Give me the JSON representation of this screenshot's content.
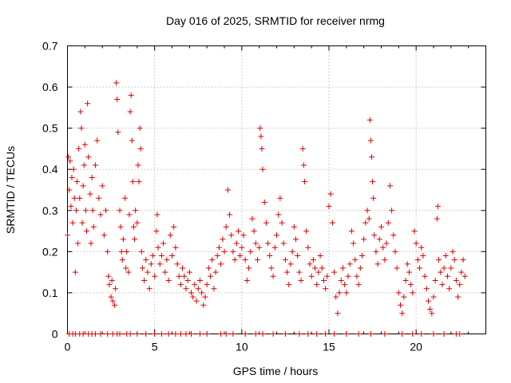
{
  "chart_data": {
    "type": "scatter",
    "title": "Day 016 of 2025, SRMTID for receiver nrmg",
    "xlabel": "GPS time / hours",
    "ylabel": "SRMTID / TECUs",
    "xlim": [
      0,
      24
    ],
    "ylim": [
      0,
      0.7
    ],
    "xticks": [
      "0",
      "5",
      "10",
      "15",
      "20"
    ],
    "yticks": [
      "0",
      "0.1",
      "0.2",
      "0.3",
      "0.4",
      "0.5",
      "0.6",
      "0.7"
    ],
    "grid": true,
    "marker": "+",
    "series_color": "#e00000",
    "series": [
      {
        "name": "SRMTID",
        "points": [
          [
            0.0,
            0.24
          ],
          [
            0.05,
            0.43
          ],
          [
            0.1,
            0.35
          ],
          [
            0.15,
            0.42
          ],
          [
            0.2,
            0.31
          ],
          [
            0.25,
            0.38
          ],
          [
            0.3,
            0.27
          ],
          [
            0.35,
            0.4
          ],
          [
            0.4,
            0.33
          ],
          [
            0.45,
            0.15
          ],
          [
            0.5,
            0.3
          ],
          [
            0.55,
            0.37
          ],
          [
            0.6,
            0.22
          ],
          [
            0.65,
            0.45
          ],
          [
            0.7,
            0.33
          ],
          [
            0.75,
            0.54
          ],
          [
            0.8,
            0.5
          ],
          [
            0.85,
            0.27
          ],
          [
            0.9,
            0.36
          ],
          [
            0.95,
            0.41
          ],
          [
            1.0,
            0.46
          ],
          [
            1.05,
            0.3
          ],
          [
            1.1,
            0.25
          ],
          [
            1.15,
            0.56
          ],
          [
            1.2,
            0.43
          ],
          [
            1.3,
            0.34
          ],
          [
            1.35,
            0.22
          ],
          [
            1.4,
            0.38
          ],
          [
            1.45,
            0.3
          ],
          [
            1.5,
            0.26
          ],
          [
            1.6,
            0.41
          ],
          [
            1.7,
            0.47
          ],
          [
            1.8,
            0.33
          ],
          [
            1.9,
            0.29
          ],
          [
            2.0,
            0.36
          ],
          [
            2.1,
            0.24
          ],
          [
            2.2,
            0.3
          ],
          [
            2.3,
            0.2
          ],
          [
            2.35,
            0.14
          ],
          [
            2.4,
            0.12
          ],
          [
            2.5,
            0.09
          ],
          [
            2.55,
            0.13
          ],
          [
            2.6,
            0.08
          ],
          [
            2.7,
            0.07
          ],
          [
            2.75,
            0.11
          ],
          [
            2.8,
            0.61
          ],
          [
            2.85,
            0.57
          ],
          [
            2.9,
            0.49
          ],
          [
            3.0,
            0.3
          ],
          [
            3.05,
            0.26
          ],
          [
            3.1,
            0.2
          ],
          [
            3.15,
            0.18
          ],
          [
            3.2,
            0.23
          ],
          [
            3.3,
            0.33
          ],
          [
            3.35,
            0.16
          ],
          [
            3.4,
            0.2
          ],
          [
            3.5,
            0.15
          ],
          [
            3.55,
            0.29
          ],
          [
            3.6,
            0.54
          ],
          [
            3.65,
            0.58
          ],
          [
            3.7,
            0.47
          ],
          [
            3.75,
            0.37
          ],
          [
            3.8,
            0.26
          ],
          [
            3.85,
            0.23
          ],
          [
            3.9,
            0.3
          ],
          [
            4.0,
            0.27
          ],
          [
            4.05,
            0.41
          ],
          [
            4.1,
            0.37
          ],
          [
            4.15,
            0.5
          ],
          [
            4.2,
            0.45
          ],
          [
            4.25,
            0.2
          ],
          [
            4.3,
            0.16
          ],
          [
            4.4,
            0.13
          ],
          [
            4.5,
            0.18
          ],
          [
            4.6,
            0.15
          ],
          [
            4.7,
            0.11
          ],
          [
            4.8,
            0.17
          ],
          [
            4.9,
            0.19
          ],
          [
            5.0,
            0.14
          ],
          [
            5.1,
            0.25
          ],
          [
            5.15,
            0.29
          ],
          [
            5.2,
            0.21
          ],
          [
            5.3,
            0.17
          ],
          [
            5.4,
            0.19
          ],
          [
            5.5,
            0.22
          ],
          [
            5.6,
            0.15
          ],
          [
            5.7,
            0.18
          ],
          [
            5.8,
            0.13
          ],
          [
            5.9,
            0.24
          ],
          [
            6.0,
            0.19
          ],
          [
            6.1,
            0.26
          ],
          [
            6.2,
            0.21
          ],
          [
            6.3,
            0.17
          ],
          [
            6.4,
            0.14
          ],
          [
            6.5,
            0.12
          ],
          [
            6.6,
            0.16
          ],
          [
            6.7,
            0.14
          ],
          [
            6.8,
            0.11
          ],
          [
            6.9,
            0.13
          ],
          [
            7.0,
            0.15
          ],
          [
            7.1,
            0.1
          ],
          [
            7.2,
            0.09
          ],
          [
            7.3,
            0.12
          ],
          [
            7.4,
            0.08
          ],
          [
            7.5,
            0.11
          ],
          [
            7.6,
            0.13
          ],
          [
            7.7,
            0.1
          ],
          [
            7.8,
            0.07
          ],
          [
            7.9,
            0.09
          ],
          [
            8.0,
            0.12
          ],
          [
            8.1,
            0.16
          ],
          [
            8.2,
            0.14
          ],
          [
            8.3,
            0.18
          ],
          [
            8.4,
            0.11
          ],
          [
            8.5,
            0.15
          ],
          [
            8.6,
            0.19
          ],
          [
            8.7,
            0.21
          ],
          [
            8.8,
            0.17
          ],
          [
            8.9,
            0.23
          ],
          [
            9.0,
            0.2
          ],
          [
            9.1,
            0.26
          ],
          [
            9.2,
            0.35
          ],
          [
            9.3,
            0.29
          ],
          [
            9.4,
            0.24
          ],
          [
            9.5,
            0.2
          ],
          [
            9.6,
            0.18
          ],
          [
            9.7,
            0.22
          ],
          [
            9.8,
            0.25
          ],
          [
            9.9,
            0.19
          ],
          [
            10.0,
            0.21
          ],
          [
            10.1,
            0.24
          ],
          [
            10.2,
            0.18
          ],
          [
            10.3,
            0.13
          ],
          [
            10.4,
            0.16
          ],
          [
            10.5,
            0.2
          ],
          [
            10.6,
            0.28
          ],
          [
            10.7,
            0.25
          ],
          [
            10.8,
            0.22
          ],
          [
            10.9,
            0.18
          ],
          [
            11.0,
            0.21
          ],
          [
            11.05,
            0.5
          ],
          [
            11.1,
            0.48
          ],
          [
            11.15,
            0.45
          ],
          [
            11.2,
            0.4
          ],
          [
            11.3,
            0.32
          ],
          [
            11.4,
            0.27
          ],
          [
            11.5,
            0.22
          ],
          [
            11.6,
            0.19
          ],
          [
            11.7,
            0.16
          ],
          [
            11.8,
            0.14
          ],
          [
            11.9,
            0.21
          ],
          [
            12.0,
            0.24
          ],
          [
            12.1,
            0.29
          ],
          [
            12.2,
            0.33
          ],
          [
            12.3,
            0.27
          ],
          [
            12.4,
            0.22
          ],
          [
            12.5,
            0.18
          ],
          [
            12.6,
            0.15
          ],
          [
            12.7,
            0.12
          ],
          [
            12.8,
            0.17
          ],
          [
            12.9,
            0.2
          ],
          [
            13.0,
            0.26
          ],
          [
            13.1,
            0.23
          ],
          [
            13.2,
            0.19
          ],
          [
            13.3,
            0.15
          ],
          [
            13.4,
            0.13
          ],
          [
            13.5,
            0.45
          ],
          [
            13.55,
            0.41
          ],
          [
            13.6,
            0.37
          ],
          [
            13.7,
            0.25
          ],
          [
            13.8,
            0.21
          ],
          [
            13.9,
            0.17
          ],
          [
            14.0,
            0.14
          ],
          [
            14.1,
            0.18
          ],
          [
            14.2,
            0.16
          ],
          [
            14.3,
            0.12
          ],
          [
            14.4,
            0.15
          ],
          [
            14.5,
            0.19
          ],
          [
            14.6,
            0.16
          ],
          [
            14.7,
            0.13
          ],
          [
            14.8,
            0.11
          ],
          [
            14.9,
            0.14
          ],
          [
            15.0,
            0.31
          ],
          [
            15.1,
            0.34
          ],
          [
            15.2,
            0.27
          ],
          [
            15.3,
            0.15
          ],
          [
            15.4,
            0.09
          ],
          [
            15.5,
            0.05
          ],
          [
            15.6,
            0.1
          ],
          [
            15.7,
            0.13
          ],
          [
            15.8,
            0.16
          ],
          [
            15.9,
            0.12
          ],
          [
            16.0,
            0.1
          ],
          [
            16.1,
            0.14
          ],
          [
            16.2,
            0.17
          ],
          [
            16.3,
            0.25
          ],
          [
            16.4,
            0.22
          ],
          [
            16.5,
            0.18
          ],
          [
            16.6,
            0.14
          ],
          [
            16.7,
            0.12
          ],
          [
            16.8,
            0.16
          ],
          [
            16.9,
            0.19
          ],
          [
            17.0,
            0.23
          ],
          [
            17.1,
            0.27
          ],
          [
            17.2,
            0.3
          ],
          [
            17.3,
            0.28
          ],
          [
            17.35,
            0.52
          ],
          [
            17.4,
            0.47
          ],
          [
            17.45,
            0.43
          ],
          [
            17.5,
            0.37
          ],
          [
            17.55,
            0.33
          ],
          [
            17.6,
            0.24
          ],
          [
            17.7,
            0.2
          ],
          [
            17.8,
            0.17
          ],
          [
            17.9,
            0.23
          ],
          [
            18.0,
            0.26
          ],
          [
            18.1,
            0.21
          ],
          [
            18.2,
            0.18
          ],
          [
            18.3,
            0.22
          ],
          [
            18.4,
            0.27
          ],
          [
            18.5,
            0.36
          ],
          [
            18.6,
            0.3
          ],
          [
            18.7,
            0.24
          ],
          [
            18.8,
            0.2
          ],
          [
            18.9,
            0.16
          ],
          [
            19.0,
            0.1
          ],
          [
            19.1,
            0.07
          ],
          [
            19.2,
            0.05
          ],
          [
            19.3,
            0.09
          ],
          [
            19.4,
            0.13
          ],
          [
            19.5,
            0.17
          ],
          [
            19.6,
            0.15
          ],
          [
            19.7,
            0.12
          ],
          [
            19.8,
            0.1
          ],
          [
            19.9,
            0.25
          ],
          [
            20.0,
            0.22
          ],
          [
            20.1,
            0.18
          ],
          [
            20.2,
            0.16
          ],
          [
            20.3,
            0.21
          ],
          [
            20.4,
            0.19
          ],
          [
            20.5,
            0.14
          ],
          [
            20.6,
            0.11
          ],
          [
            20.7,
            0.08
          ],
          [
            20.8,
            0.06
          ],
          [
            20.9,
            0.05
          ],
          [
            21.0,
            0.09
          ],
          [
            21.1,
            0.13
          ],
          [
            21.2,
            0.28
          ],
          [
            21.25,
            0.31
          ],
          [
            21.3,
            0.18
          ],
          [
            21.4,
            0.15
          ],
          [
            21.5,
            0.12
          ],
          [
            21.6,
            0.16
          ],
          [
            21.7,
            0.19
          ],
          [
            21.8,
            0.14
          ],
          [
            21.9,
            0.11
          ],
          [
            22.0,
            0.16
          ],
          [
            22.1,
            0.2
          ],
          [
            22.2,
            0.18
          ],
          [
            22.3,
            0.13
          ],
          [
            22.4,
            0.09
          ],
          [
            22.5,
            0.12
          ],
          [
            22.6,
            0.15
          ],
          [
            22.7,
            0.18
          ],
          [
            22.8,
            0.14
          ]
        ],
        "zero_ticks": [
          0.1,
          0.3,
          0.45,
          0.7,
          0.9,
          1.2,
          1.4,
          1.6,
          1.9,
          2.3,
          2.6,
          2.85,
          3.0,
          3.4,
          3.6,
          4.0,
          4.5,
          5.0,
          5.4,
          5.8,
          6.2,
          6.5,
          6.8,
          7.1,
          7.6,
          8.0,
          8.8,
          9.1,
          9.5,
          10.2,
          10.8,
          11.2,
          11.8,
          12.5,
          13.3,
          13.8,
          14.3,
          14.8,
          15.3,
          16.0,
          16.7,
          17.4,
          18.2,
          19.2,
          19.8,
          20.3,
          21.0,
          21.6,
          22.3,
          22.5
        ]
      }
    ]
  }
}
